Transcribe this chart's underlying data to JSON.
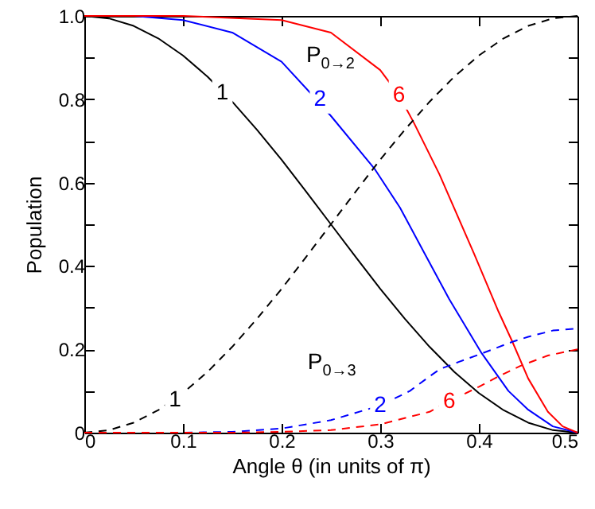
{
  "chart_data": {
    "type": "line",
    "xlabel": "Angle θ (in units of π)",
    "ylabel": "Population",
    "xlim": [
      0,
      0.5
    ],
    "ylim": [
      0,
      1
    ],
    "xticks": [
      0,
      0.1,
      0.2,
      0.3,
      0.4,
      0.5
    ],
    "yticks": [
      0,
      {
        "value": 0.1,
        "label": null
      },
      0.2,
      {
        "value": 0.3,
        "label": null
      },
      0.4,
      {
        "value": 0.5,
        "label": null
      },
      0.6,
      {
        "value": 0.7,
        "label": null
      },
      0.8,
      {
        "value": 0.9,
        "label": null
      },
      {
        "value": 1,
        "label": "1.0"
      }
    ],
    "marker": "none",
    "series": [
      {
        "color": "#000000",
        "line_style": "solid",
        "x": [
          0,
          0.025,
          0.05,
          0.075,
          0.1,
          0.125,
          0.15,
          0.175,
          0.2,
          0.225,
          0.25,
          0.275,
          0.3,
          0.325,
          0.35,
          0.375,
          0.4,
          0.425,
          0.45,
          0.475,
          0.5
        ],
        "values": [
          1,
          0.994,
          0.976,
          0.946,
          0.905,
          0.854,
          0.794,
          0.727,
          0.655,
          0.578,
          0.5,
          0.422,
          0.345,
          0.273,
          0.206,
          0.146,
          0.095,
          0.054,
          0.024,
          0.006,
          0
        ]
      },
      {
        "color": "#0000ff",
        "line_style": "solid",
        "x": [
          0,
          0.05,
          0.1,
          0.15,
          0.2,
          0.235,
          0.25,
          0.294,
          0.32,
          0.345,
          0.37,
          0.403,
          0.43,
          0.45,
          0.475,
          0.5
        ],
        "values": [
          1,
          1,
          0.99,
          0.96,
          0.89,
          0.8,
          0.76,
          0.634,
          0.54,
          0.43,
          0.32,
          0.19,
          0.1,
          0.055,
          0.015,
          0
        ]
      },
      {
        "color": "#ff0000",
        "line_style": "solid",
        "x": [
          0,
          0.1,
          0.2,
          0.25,
          0.3,
          0.319,
          0.334,
          0.36,
          0.395,
          0.42,
          0.434,
          0.45,
          0.47,
          0.485,
          0.5
        ],
        "values": [
          1,
          1,
          0.99,
          0.96,
          0.87,
          0.81,
          0.744,
          0.62,
          0.43,
          0.29,
          0.218,
          0.13,
          0.05,
          0.015,
          0
        ]
      },
      {
        "color": "#000000",
        "line_style": "dashed",
        "x": [
          0,
          0.025,
          0.05,
          0.075,
          0.1,
          0.125,
          0.15,
          0.175,
          0.2,
          0.225,
          0.25,
          0.275,
          0.3,
          0.325,
          0.35,
          0.375,
          0.4,
          0.425,
          0.45,
          0.475,
          0.5
        ],
        "values": [
          0,
          0.006,
          0.024,
          0.054,
          0.095,
          0.146,
          0.206,
          0.273,
          0.345,
          0.422,
          0.5,
          0.578,
          0.655,
          0.727,
          0.794,
          0.854,
          0.905,
          0.946,
          0.976,
          0.994,
          1
        ]
      },
      {
        "color": "#0000ff",
        "line_style": "dashed",
        "x": [
          0,
          0.1,
          0.15,
          0.2,
          0.25,
          0.3,
          0.33,
          0.35,
          0.361,
          0.38,
          0.403,
          0.434,
          0.45,
          0.475,
          0.5
        ],
        "values": [
          0,
          0,
          0.002,
          0.01,
          0.03,
          0.065,
          0.1,
          0.135,
          0.153,
          0.17,
          0.19,
          0.218,
          0.23,
          0.245,
          0.25
        ]
      },
      {
        "color": "#ff0000",
        "line_style": "dashed",
        "x": [
          0,
          0.15,
          0.2,
          0.25,
          0.3,
          0.35,
          0.37,
          0.4,
          0.42,
          0.442,
          0.47,
          0.5
        ],
        "values": [
          0,
          0,
          0.002,
          0.006,
          0.02,
          0.05,
          0.075,
          0.11,
          0.135,
          0.16,
          0.185,
          0.2
        ]
      }
    ],
    "annotations": [
      "P$_{0→2}$",
      {
        "text": "1",
        "x": 0.14,
        "y": 0.815
      },
      {
        "text": "2",
        "x": 0.239,
        "y": 0.8
      },
      {
        "text": "6",
        "x": 0.319,
        "y": 0.81
      },
      "P$_{0→3}$",
      {
        "text": "1",
        "x": 0.092,
        "y": 0.078
      },
      {
        "text": "2",
        "x": 0.3,
        "y": 0.065
      },
      {
        "text": "6",
        "x": 0.37,
        "y": 0.075
      }
    ]
  }
}
